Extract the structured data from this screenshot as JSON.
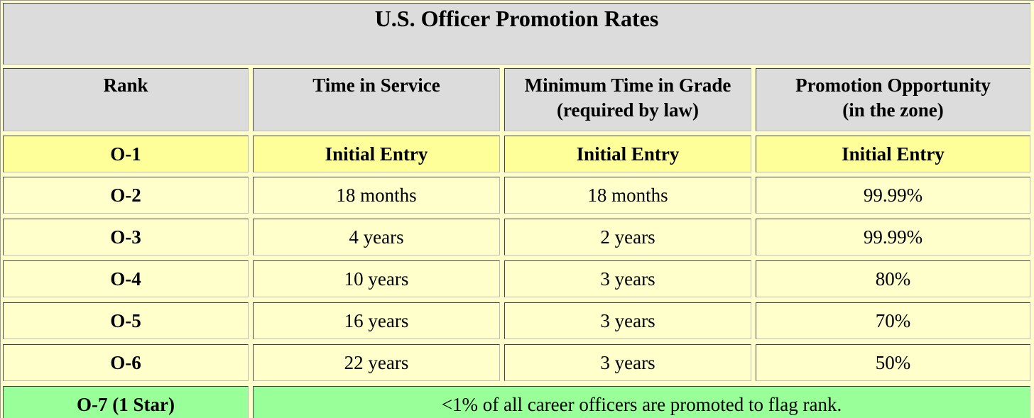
{
  "title": "U.S. Officer Promotion Rates",
  "table": {
    "header": [
      [
        "Rank"
      ],
      [
        "Time in Service"
      ],
      [
        "Minimum Time in Grade",
        "(required by law)"
      ],
      [
        "Promotion Opportunity",
        "(in the zone)"
      ]
    ],
    "rows": [
      [
        "O-1",
        "Initial Entry",
        "Initial Entry",
        "Initial Entry"
      ],
      [
        "O-2",
        "18 months",
        "18 months",
        "99.99%"
      ],
      [
        "O-3",
        "4 years",
        "2 years",
        "99.99%"
      ],
      [
        "O-4",
        "10 years",
        "3 years",
        "80%"
      ],
      [
        "O-5",
        "16 years",
        "3 years",
        "70%"
      ],
      [
        "O-6",
        "22 years",
        "3 years",
        "50%"
      ]
    ],
    "last_row": [
      "O-7 (1 Star)",
      "<1% of all career officers are promoted to flag rank."
    ]
  }
}
